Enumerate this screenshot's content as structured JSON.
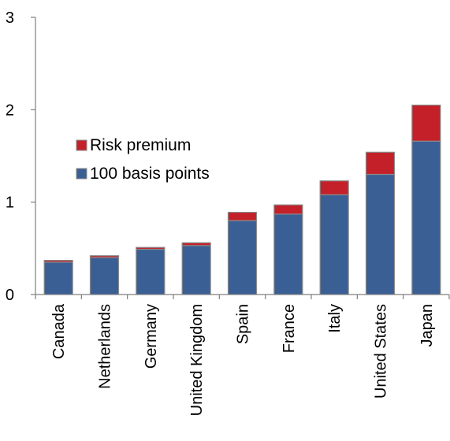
{
  "chart_data": {
    "type": "bar",
    "stacked": true,
    "title": "",
    "xlabel": "",
    "ylabel": "",
    "ylim": [
      0,
      3
    ],
    "yticks": [
      "0",
      "1",
      "2",
      "3"
    ],
    "grid": false,
    "legend_placement": "upper-left",
    "categories": [
      "Canada",
      "Netherlands",
      "Germany",
      "United Kingdom",
      "Spain",
      "France",
      "Italy",
      "United States",
      "Japan"
    ],
    "series": [
      {
        "name": "100 basis points",
        "color": "#3A5F95",
        "values": [
          0.35,
          0.4,
          0.49,
          0.53,
          0.8,
          0.87,
          1.08,
          1.3,
          1.66
        ]
      },
      {
        "name": "Risk premium",
        "color": "#C4202A",
        "values": [
          0.02,
          0.02,
          0.02,
          0.03,
          0.09,
          0.1,
          0.15,
          0.24,
          0.39
        ]
      }
    ]
  }
}
